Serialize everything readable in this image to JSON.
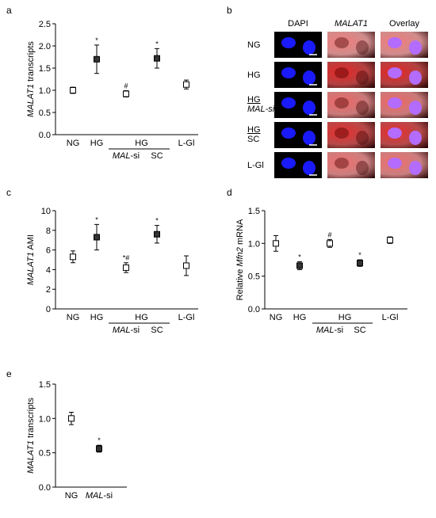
{
  "panels": {
    "a": "a",
    "b": "b",
    "c": "c",
    "d": "d",
    "e": "e"
  },
  "colors": {
    "filled": "#333333",
    "open": "#ffffff",
    "dapi": "#1a1aff",
    "malat": "#cc0000"
  },
  "chart_data": [
    {
      "id": "a",
      "type": "scatter",
      "ylabel_italic": "MALAT1",
      "ylabel_rest": " transcripts",
      "ylim": [
        0,
        2.5
      ],
      "yticks": [
        "0.0",
        "0.5",
        "1.0",
        "1.5",
        "2.0",
        "2.5"
      ],
      "yticks_values": [
        0,
        0.5,
        1.0,
        1.5,
        2.0,
        2.5
      ],
      "categories": [
        "NG",
        "HG",
        "HG",
        "HG",
        "L-Gl"
      ],
      "group_labels": {
        "hg_group": "HG",
        "malsi_italic": "MAL",
        "malsi_rest": "-si",
        "sc": "SC"
      },
      "points": [
        {
          "cat": "NG",
          "value": 1.0,
          "err": 0.07,
          "filled": false,
          "mark": ""
        },
        {
          "cat": "HG",
          "value": 1.7,
          "err": 0.32,
          "filled": true,
          "mark": "*"
        },
        {
          "cat": "HG MAL-si",
          "value": 0.92,
          "err": 0.07,
          "filled": false,
          "mark": "#"
        },
        {
          "cat": "HG SC",
          "value": 1.72,
          "err": 0.22,
          "filled": true,
          "mark": "*"
        },
        {
          "cat": "L-Gl",
          "value": 1.13,
          "err": 0.1,
          "filled": false,
          "mark": ""
        }
      ]
    },
    {
      "id": "c",
      "type": "scatter",
      "ylabel_italic": "MALAT1",
      "ylabel_rest": " AMI",
      "ylim": [
        0,
        10
      ],
      "yticks": [
        "0",
        "2",
        "4",
        "6",
        "8",
        "10"
      ],
      "yticks_values": [
        0,
        2,
        4,
        6,
        8,
        10
      ],
      "categories": [
        "NG",
        "HG",
        "HG",
        "HG",
        "L-Gl"
      ],
      "group_labels": {
        "hg_group": "HG",
        "malsi_italic": "MAL",
        "malsi_rest": "-si",
        "sc": "SC"
      },
      "points": [
        {
          "cat": "NG",
          "value": 5.3,
          "err": 0.6,
          "filled": false,
          "mark": ""
        },
        {
          "cat": "HG",
          "value": 7.3,
          "err": 1.3,
          "filled": true,
          "mark": "*"
        },
        {
          "cat": "HG MAL-si",
          "value": 4.2,
          "err": 0.5,
          "filled": false,
          "mark": "*#"
        },
        {
          "cat": "HG SC",
          "value": 7.6,
          "err": 0.9,
          "filled": true,
          "mark": "*"
        },
        {
          "cat": "L-Gl",
          "value": 4.4,
          "err": 1.0,
          "filled": false,
          "mark": ""
        }
      ]
    },
    {
      "id": "d",
      "type": "scatter",
      "ylabel_pre": "Relative ",
      "ylabel_italic": "Mfn2",
      "ylabel_rest": " mRNA",
      "ylim": [
        0,
        1.5
      ],
      "yticks": [
        "0.0",
        "0.5",
        "1.0",
        "1.5"
      ],
      "yticks_values": [
        0,
        0.5,
        1.0,
        1.5
      ],
      "categories": [
        "NG",
        "HG",
        "HG",
        "HG",
        "L-Gl"
      ],
      "group_labels": {
        "hg_group": "HG",
        "malsi_italic": "MAL",
        "malsi_rest": "-si",
        "sc": "SC"
      },
      "points": [
        {
          "cat": "NG",
          "value": 1.0,
          "err": 0.12,
          "filled": false,
          "mark": ""
        },
        {
          "cat": "HG",
          "value": 0.66,
          "err": 0.06,
          "filled": true,
          "mark": "*"
        },
        {
          "cat": "HG MAL-si",
          "value": 1.0,
          "err": 0.06,
          "filled": false,
          "mark": "#"
        },
        {
          "cat": "HG SC",
          "value": 0.7,
          "err": 0.05,
          "filled": true,
          "mark": "*"
        },
        {
          "cat": "L-Gl",
          "value": 1.05,
          "err": 0.05,
          "filled": false,
          "mark": ""
        }
      ]
    },
    {
      "id": "e",
      "type": "scatter",
      "ylabel_italic": "MALAT1",
      "ylabel_rest": " transcripts",
      "ylim": [
        0,
        1.5
      ],
      "yticks": [
        "0.0",
        "0.5",
        "1.0",
        "1.5"
      ],
      "yticks_values": [
        0,
        0.5,
        1.0,
        1.5
      ],
      "categories": [
        "NG",
        "MAL-si"
      ],
      "xlabels": [
        {
          "plain": "NG"
        },
        {
          "italic": "MAL",
          "rest": "-si"
        }
      ],
      "points": [
        {
          "cat": "NG",
          "value": 1.0,
          "err": 0.09,
          "filled": false,
          "mark": ""
        },
        {
          "cat": "MAL-si",
          "value": 0.56,
          "err": 0.05,
          "filled": true,
          "mark": "*"
        }
      ]
    }
  ],
  "micrographs": {
    "col_headers": [
      "DAPI",
      "MALAT1",
      "Overlay"
    ],
    "rows": [
      {
        "label": "NG",
        "underline": "",
        "sub": "",
        "sub_italic": false
      },
      {
        "label": "HG",
        "underline": "",
        "sub": "",
        "sub_italic": false
      },
      {
        "label": "",
        "underline": "HG",
        "sub": "MAL-si",
        "sub_italic": true
      },
      {
        "label": "",
        "underline": "HG",
        "sub": "SC",
        "sub_italic": false
      },
      {
        "label": "L-Gl",
        "underline": "",
        "sub": "",
        "sub_italic": false
      }
    ],
    "intensity": [
      0.35,
      0.95,
      0.5,
      0.9,
      0.45
    ]
  }
}
